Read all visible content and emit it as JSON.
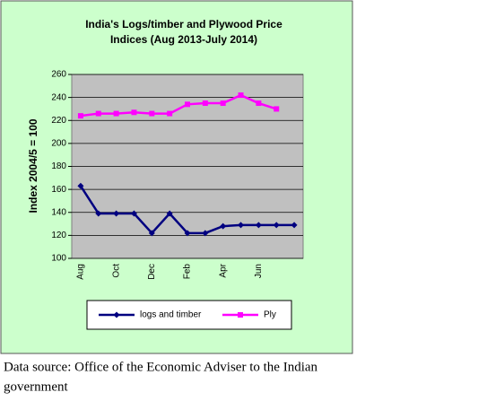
{
  "chart_data": {
    "type": "line",
    "title": [
      "India's Logs/timber and Plywood Price",
      "Indices (Aug  2013-July 2014)"
    ],
    "y_label": "Index 2004/5 = 100",
    "categories": [
      "Aug",
      null,
      "Oct",
      null,
      "Dec",
      null,
      "Feb",
      null,
      "Apr",
      null,
      "Jun",
      null,
      null
    ],
    "series": [
      {
        "name": "logs and timber",
        "color": "#000080",
        "values": [
          163,
          139,
          139,
          139,
          122,
          139,
          122,
          122,
          128,
          129,
          129,
          129,
          129
        ]
      },
      {
        "name": "Ply",
        "color": "#ff00ff",
        "values": [
          224,
          226,
          226,
          227,
          226,
          226,
          234,
          235,
          235,
          242,
          235,
          230,
          null
        ]
      }
    ],
    "ylim": [
      100,
      260
    ],
    "yticks": [
      100,
      120,
      140,
      160,
      180,
      200,
      220,
      240,
      260
    ],
    "grid": true,
    "caption": [
      "Data source: Office of the Economic Adviser to the Indian",
      "government"
    ]
  }
}
